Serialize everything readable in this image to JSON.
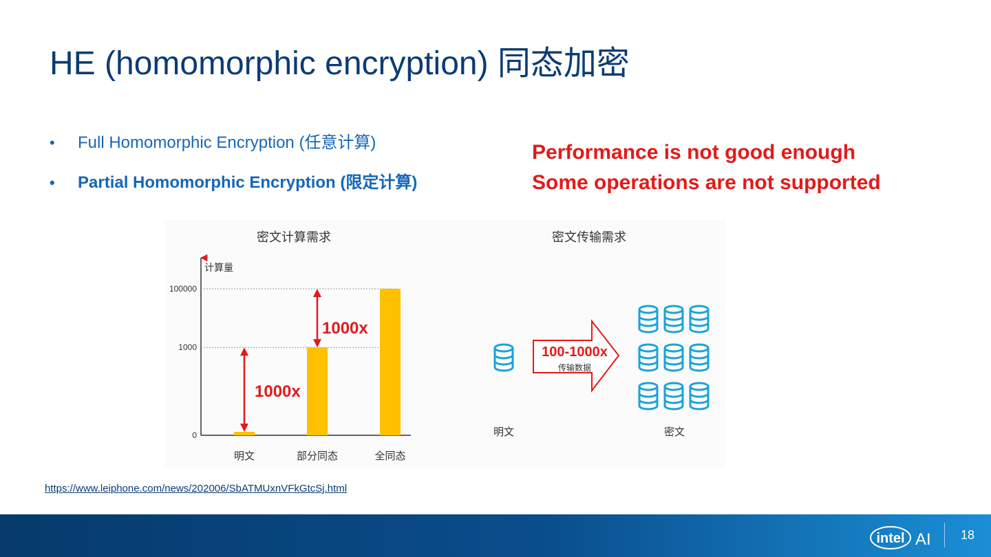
{
  "slide": {
    "title": "HE (homomorphic encryption) 同态加密",
    "bullets": [
      {
        "text": "Full Homomorphic Encryption (任意计算)",
        "bold": false
      },
      {
        "text": "Partial Homomorphic Encryption (限定计算)",
        "bold": true
      }
    ],
    "warnings": [
      "Performance is not good enough",
      "Some operations are not supported"
    ],
    "source_link": "https://www.leiphone.com/news/202006/SbATMUxnVFkGtcSj.html",
    "page_number": "18",
    "colors": {
      "title": "#0b3c73",
      "bullet": "#1467b8",
      "warning": "#e21a1a",
      "bar": "#ffc000",
      "arrow": "#e21a1a",
      "db": "#1aa3d9"
    }
  },
  "figure": {
    "left_title": "密文计算需求",
    "right_title": "密文传输需求",
    "plaintext_label": "明文",
    "ciphertext_label": "密文",
    "transfer_ratio": "100-1000x",
    "transfer_caption": "传输数据"
  },
  "chart_data": {
    "type": "bar",
    "title": "密文计算需求",
    "ylabel": "计算量",
    "categories": [
      "明文",
      "部分同态",
      "全同态"
    ],
    "values": [
      1,
      1000,
      100000
    ],
    "yscale": "log",
    "yticks": [
      "0",
      "1000",
      "100000"
    ],
    "annotations": [
      "1000x",
      "1000x"
    ],
    "grid": "dashed at ticks"
  },
  "footer": {
    "brand": "intel",
    "product": "AI"
  }
}
